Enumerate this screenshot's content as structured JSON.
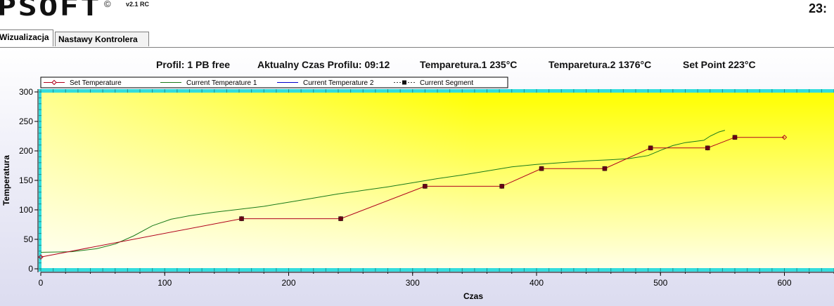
{
  "header": {
    "logo_text": "PSOFT",
    "copyright": "©",
    "version": "v2.1 RC",
    "clock": "23:"
  },
  "tabs": [
    {
      "label": "Wizualizacja",
      "active": true
    },
    {
      "label": "Nastawy Kontrolera",
      "active": false
    }
  ],
  "info": {
    "profile": "Profil: 1 PB free",
    "time": "Aktualny Czas Profilu: 09:12",
    "temp1": "Temparetura.1  235°C",
    "temp2": "Temparetura.2  1376°C",
    "setpoint": "Set Point 223°C"
  },
  "colors": {
    "set_temperature": "#b0001c",
    "current_temperature_1": "#1a7a1a",
    "current_temperature_2": "#0000cc",
    "current_segment": "#111111",
    "plot_top": "#ffff00",
    "plot_bottom_left": "#ffffee",
    "axis_band": "#33dddd"
  },
  "chart_data": {
    "type": "line",
    "xlabel": "Czas",
    "ylabel": "Temperatura",
    "xlim": [
      0,
      640
    ],
    "ylim": [
      0,
      300
    ],
    "xticks": [
      0,
      100,
      200,
      300,
      400,
      500,
      600
    ],
    "yticks": [
      0,
      50,
      100,
      150,
      200,
      250,
      300
    ],
    "legend": [
      "Set Temperature",
      "Current Temperature 1",
      "Current Temperature 2",
      "Current Segment"
    ],
    "legend_position": "top-left",
    "series": [
      {
        "name": "Set Temperature",
        "points": [
          [
            0,
            20
          ],
          [
            162,
            85
          ],
          [
            242,
            85
          ],
          [
            310,
            140
          ],
          [
            372,
            140
          ],
          [
            404,
            170
          ],
          [
            455,
            170
          ],
          [
            492,
            205
          ],
          [
            538,
            205
          ],
          [
            560,
            223
          ],
          [
            600,
            223
          ]
        ]
      },
      {
        "name": "Current Temperature 1",
        "points": [
          [
            0,
            28
          ],
          [
            25,
            29
          ],
          [
            45,
            34
          ],
          [
            60,
            42
          ],
          [
            75,
            56
          ],
          [
            90,
            73
          ],
          [
            105,
            84
          ],
          [
            120,
            90
          ],
          [
            140,
            96
          ],
          [
            160,
            101
          ],
          [
            180,
            106
          ],
          [
            200,
            113
          ],
          [
            220,
            120
          ],
          [
            240,
            127
          ],
          [
            260,
            133
          ],
          [
            280,
            139
          ],
          [
            300,
            146
          ],
          [
            320,
            153
          ],
          [
            340,
            159
          ],
          [
            360,
            166
          ],
          [
            380,
            173
          ],
          [
            400,
            177
          ],
          [
            420,
            180
          ],
          [
            440,
            183
          ],
          [
            460,
            185
          ],
          [
            475,
            187
          ],
          [
            490,
            192
          ],
          [
            500,
            201
          ],
          [
            510,
            209
          ],
          [
            520,
            214
          ],
          [
            535,
            218
          ],
          [
            540,
            225
          ],
          [
            547,
            232
          ],
          [
            552,
            235
          ]
        ]
      },
      {
        "name": "Current Temperature 2",
        "points": []
      },
      {
        "name": "Current Segment",
        "points": [
          [
            162,
            85
          ],
          [
            242,
            85
          ],
          [
            310,
            140
          ],
          [
            372,
            140
          ],
          [
            404,
            170
          ],
          [
            455,
            170
          ],
          [
            492,
            205
          ],
          [
            538,
            205
          ],
          [
            560,
            223
          ]
        ]
      }
    ]
  }
}
